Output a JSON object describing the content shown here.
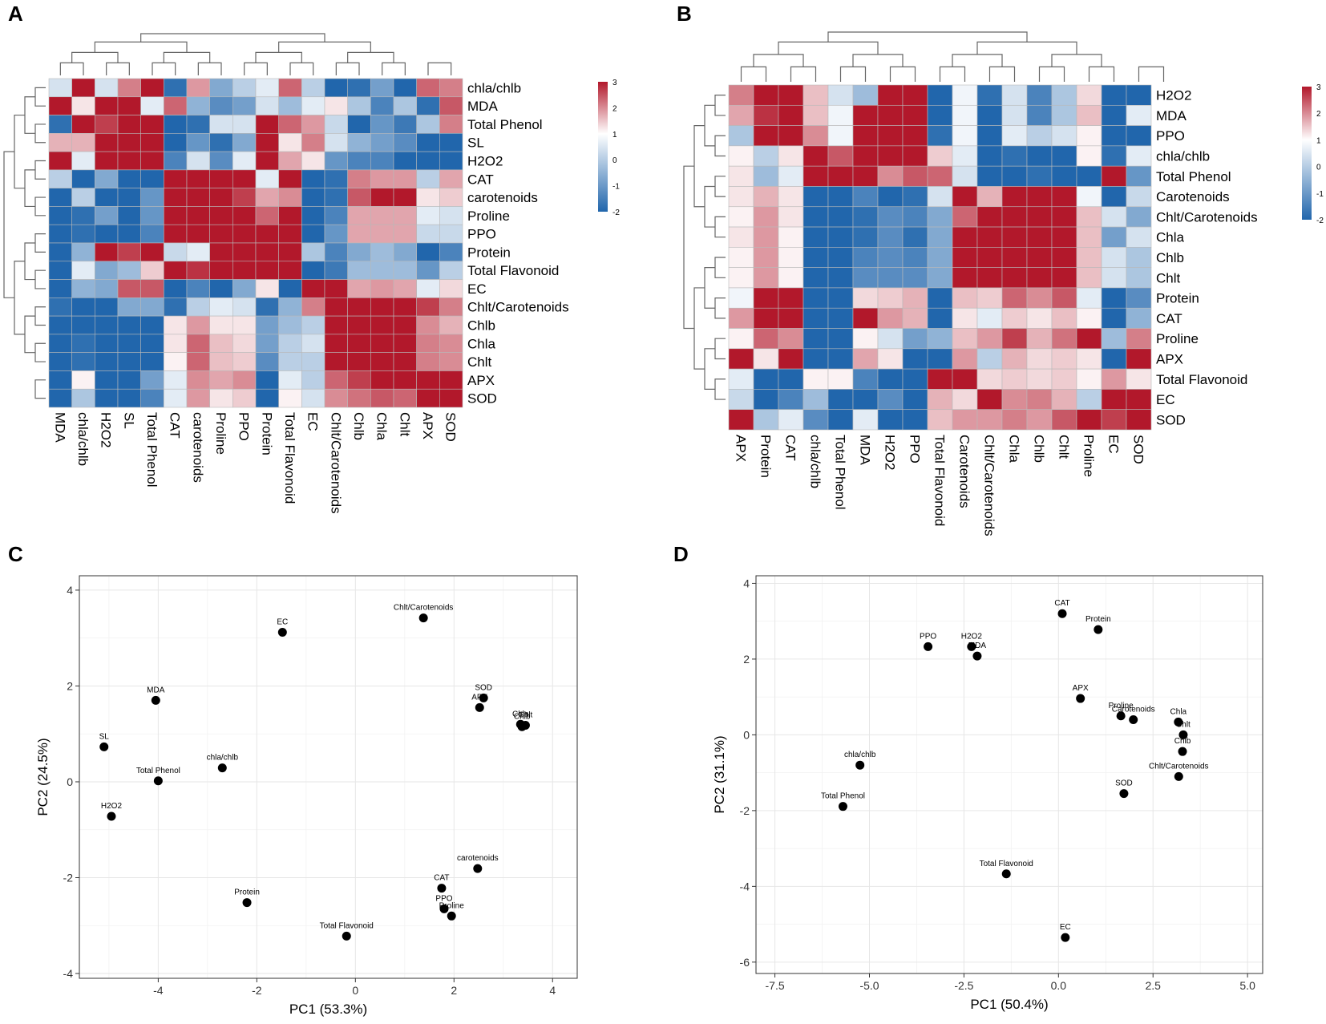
{
  "panels": [
    "A",
    "B",
    "C",
    "D"
  ],
  "colors": {
    "low": "#2166ac",
    "mid": "#ffffff",
    "high": "#b2182b",
    "point": "#000000"
  },
  "chart_data": [
    {
      "type": "heatmap",
      "panel": "A",
      "title": "",
      "rows": [
        "chla/chlb",
        "MDA",
        "Total Phenol",
        "SL",
        "H2O2",
        "CAT",
        "carotenoids",
        "Proline",
        "PPO",
        "Protein",
        "Total Flavonoid",
        "EC",
        "Chlt/Carotenoids",
        "Chlb",
        "Chla",
        "Chlt",
        "APX",
        "SOD"
      ],
      "columns": [
        "MDA",
        "chla/chlb",
        "H2O2",
        "SL",
        "Total Phenol",
        "CAT",
        "carotenoids",
        "Proline",
        "PPO",
        "Protein",
        "Total Flavonoid",
        "EC",
        "Chlt/Carotenoids",
        "Chlb",
        "Chla",
        "Chlt",
        "APX",
        "SOD"
      ],
      "values": [
        [
          -0.3,
          3,
          -0.3,
          1,
          3,
          -1.5,
          0.8,
          -0.9,
          -0.5,
          -0.2,
          1.2,
          -0.5,
          -2,
          -1.5,
          -1,
          -2,
          1.2,
          1
        ],
        [
          3,
          0.2,
          3,
          3,
          -0.2,
          1.2,
          -0.8,
          -1.2,
          -1,
          -0.3,
          -0.7,
          -0.2,
          0.2,
          -0.6,
          -1.3,
          -0.6,
          -1.5,
          1.3
        ],
        [
          -1.5,
          2.5,
          1.5,
          3,
          3,
          -1.8,
          -1.5,
          -0.3,
          -0.3,
          3,
          1.2,
          0.8,
          -0.4,
          -1.6,
          -1.1,
          -1.4,
          -0.6,
          1
        ],
        [
          0.6,
          0.6,
          3,
          3,
          3,
          -2,
          -1.1,
          -1.5,
          -0.9,
          3,
          0.2,
          1,
          -0.3,
          -0.8,
          -1,
          -1.2,
          -2,
          -2
        ],
        [
          2.5,
          -0.2,
          3,
          3,
          2.5,
          -1.3,
          -0.3,
          -1.2,
          -0.2,
          3,
          0.7,
          0.2,
          -1.1,
          -1.3,
          -1.3,
          -1.6,
          -2,
          -1.8
        ],
        [
          -0.5,
          -2,
          -0.9,
          -2,
          -2,
          3,
          3,
          3,
          3,
          -0.2,
          2,
          -2,
          -1.5,
          1,
          0.8,
          0.8,
          -0.5,
          0.7
        ],
        [
          -2,
          -0.5,
          -2,
          -2,
          -1.1,
          3,
          3,
          3,
          1.5,
          0.7,
          0.9,
          -2,
          -1.5,
          1.3,
          3,
          2,
          0.2,
          0.4
        ],
        [
          -2,
          -1.5,
          -1,
          -2,
          -1.1,
          3,
          3,
          3,
          3,
          1.2,
          2.5,
          -2,
          -1.3,
          0.7,
          0.7,
          0.7,
          -0.2,
          -0.3
        ],
        [
          -2,
          -1.5,
          -2,
          -2,
          -1.3,
          2.5,
          2,
          3,
          3,
          2,
          3,
          -2,
          -1.1,
          0.7,
          0.7,
          0.7,
          -0.4,
          -0.4
        ],
        [
          -2,
          -0.8,
          2.5,
          1.5,
          3,
          -0.4,
          -0.2,
          1.8,
          3,
          3,
          3,
          -0.6,
          -1.3,
          -0.9,
          -0.7,
          -0.9,
          -1.8,
          -1.3
        ],
        [
          -2,
          -0.2,
          -0.9,
          -0.7,
          0.4,
          2,
          1.6,
          3,
          3,
          3,
          3,
          -2,
          -1.4,
          -0.7,
          -0.7,
          -0.7,
          -1.1,
          -0.5
        ],
        [
          -2,
          -0.8,
          -0.9,
          1.3,
          1.3,
          -2,
          -1.3,
          -2,
          -0.9,
          0.2,
          -2,
          3,
          3,
          0.7,
          0.8,
          0.7,
          -0.2,
          0.3
        ],
        [
          -1.5,
          -2,
          -2,
          -0.9,
          -0.9,
          -1.5,
          -0.5,
          -0.2,
          -0.3,
          -1.5,
          -0.8,
          1,
          3,
          3,
          3,
          3,
          1.5,
          1
        ],
        [
          -2,
          -2,
          -2,
          -2,
          -2,
          0.2,
          0.8,
          0.2,
          0.2,
          -1,
          -0.7,
          -0.5,
          3,
          3,
          3,
          3,
          0.9,
          0.6
        ],
        [
          -2,
          -1.5,
          -2,
          -2,
          -2,
          0.2,
          1.2,
          0.5,
          0.3,
          -1,
          -0.5,
          -0.3,
          2.2,
          3,
          3,
          3,
          1,
          0.9
        ],
        [
          -2,
          -1.5,
          -2,
          -2,
          -2,
          0.1,
          1.2,
          0.5,
          0.4,
          -1.2,
          -0.5,
          -0.5,
          2.5,
          3,
          3,
          3,
          1,
          0.9
        ],
        [
          -2,
          0.1,
          -2,
          -2,
          -1,
          -0.2,
          0.9,
          0.7,
          0.9,
          -1.8,
          -0.2,
          -0.5,
          1.2,
          1.5,
          2,
          2,
          3,
          3
        ],
        [
          -2,
          -0.6,
          -2,
          -2,
          -1.3,
          -0.2,
          0.8,
          0.2,
          0.4,
          -2,
          0.1,
          -0.3,
          0.9,
          1.1,
          1.3,
          1.2,
          3,
          3
        ]
      ],
      "legend": {
        "min": -2,
        "max": 3,
        "ticks": [
          "3",
          "2",
          "1",
          "0",
          "-1",
          "-2"
        ]
      }
    },
    {
      "type": "heatmap",
      "panel": "B",
      "title": "",
      "rows": [
        "H2O2",
        "MDA",
        "PPO",
        "chla/chlb",
        "Total Phenol",
        "Carotenoids",
        "Chlt/Carotenoids",
        "Chla",
        "Chlb",
        "Chlt",
        "Protein",
        "CAT",
        "Proline",
        "APX",
        "Total Flavonoid",
        "EC",
        "SOD"
      ],
      "columns": [
        "APX",
        "Protein",
        "CAT",
        "chla/chlb",
        "Total Phenol",
        "MDA",
        "H2O2",
        "PPO",
        "Total Flavonoid",
        "Carotenoids",
        "Chlt/Carotenoids",
        "Chla",
        "Chlb",
        "Chlt",
        "Proline",
        "EC",
        "SOD"
      ],
      "values": [
        [
          1,
          3,
          3,
          0.5,
          -0.3,
          -0.7,
          3,
          3,
          -2,
          -0.1,
          -1.5,
          -0.3,
          -1.3,
          -0.6,
          0.3,
          -2,
          -2
        ],
        [
          0.7,
          1.6,
          3,
          0.5,
          -0.1,
          3,
          2.5,
          3,
          -2,
          -0.1,
          -2,
          -0.3,
          -1.3,
          -0.6,
          0.5,
          -2,
          -0.2
        ],
        [
          -0.6,
          2.5,
          3,
          0.9,
          -0.1,
          3,
          2.5,
          3,
          -1.5,
          -0.1,
          -1.6,
          -0.2,
          -0.5,
          -0.3,
          0.1,
          -2,
          -2
        ],
        [
          0.1,
          -0.5,
          0.2,
          3,
          1.3,
          3,
          2.5,
          3,
          0.4,
          -0.2,
          -2,
          -1.5,
          -2,
          -2,
          0.1,
          -1.5,
          -0.2
        ],
        [
          0.2,
          -0.7,
          -0.2,
          2.5,
          3,
          3,
          0.9,
          1.3,
          1.2,
          -0.3,
          -2,
          -2,
          -1.5,
          -2,
          -2,
          3,
          -1.1
        ],
        [
          0.2,
          0.6,
          0.2,
          -2,
          -2,
          -1.3,
          -1.6,
          -1.5,
          -0.3,
          3,
          0.6,
          3,
          3,
          3,
          -0.1,
          -2,
          -0.4
        ],
        [
          0.1,
          0.8,
          0.2,
          -2,
          -2,
          -1.5,
          -1.2,
          -1.3,
          -0.9,
          1.2,
          3,
          3,
          3,
          3,
          0.5,
          -0.3,
          -0.9
        ],
        [
          0.2,
          0.8,
          0.1,
          -2,
          -2,
          -1.5,
          -1.2,
          -1.5,
          -0.9,
          2.5,
          3,
          3,
          3,
          3,
          0.5,
          -1,
          -0.3
        ],
        [
          0.1,
          0.8,
          0.1,
          -2,
          -2,
          -1.3,
          -1.2,
          -1.3,
          -0.9,
          2.5,
          3,
          3,
          3,
          3,
          0.5,
          -0.3,
          -0.6
        ],
        [
          0.1,
          0.8,
          0.1,
          -2,
          -2,
          -1.2,
          -1.2,
          -1.2,
          -0.9,
          2.5,
          3,
          3,
          3,
          3,
          0.5,
          -0.3,
          -0.6
        ],
        [
          -0.1,
          3,
          3,
          -2,
          -2,
          0.3,
          0.4,
          0.6,
          -2,
          0.5,
          0.4,
          1.2,
          0.9,
          1.3,
          -0.2,
          -2,
          -1.2
        ],
        [
          0.8,
          3,
          3,
          -1.7,
          -2,
          2,
          0.8,
          0.6,
          -2,
          0.2,
          -0.2,
          0.4,
          0.2,
          0.5,
          0.1,
          -2,
          -0.8
        ],
        [
          0.1,
          1.2,
          0.9,
          -2,
          -2,
          0.1,
          -0.3,
          -1,
          -0.8,
          0.5,
          0.8,
          1.5,
          0.6,
          1.1,
          3,
          -0.7,
          1
        ],
        [
          3,
          0.2,
          1.9,
          -2,
          -2,
          0.7,
          0.2,
          -2,
          -2,
          0.8,
          -0.5,
          0.6,
          0.3,
          0.4,
          0.2,
          -2,
          3
        ],
        [
          -0.2,
          -2,
          -2,
          0.1,
          0.1,
          -1.3,
          -1.8,
          -2,
          3,
          2.5,
          0.3,
          0.4,
          0.3,
          0.4,
          0.1,
          0.8,
          0.2
        ],
        [
          -0.4,
          -2,
          -1.3,
          -0.7,
          -2,
          -2,
          -1.2,
          -2,
          0.6,
          0.3,
          3,
          0.9,
          1,
          0.6,
          -0.5,
          3,
          3
        ],
        [
          3,
          -0.6,
          -0.2,
          -1.2,
          -2,
          -0.2,
          -2,
          -2,
          0.5,
          0.8,
          0.8,
          1,
          0.8,
          1.3,
          2,
          1.5,
          3
        ]
      ],
      "legend": {
        "min": -2,
        "max": 3,
        "ticks": [
          "3",
          "2",
          "1",
          "0",
          "-1",
          "-2"
        ]
      }
    },
    {
      "type": "scatter",
      "panel": "C",
      "xlabel": "PC1 (53.3%)",
      "ylabel": "PC2 (24.5%)",
      "xlim": [
        -5.6,
        4.5
      ],
      "ylim": [
        -4.1,
        4.3
      ],
      "xticks": [
        "-4",
        "-2",
        "0",
        "2",
        "4"
      ],
      "yticks": [
        "4",
        "2",
        "0",
        "-2",
        "-4"
      ],
      "points": [
        {
          "label": "Chlt/Carotenoids",
          "x": 1.38,
          "y": 3.42
        },
        {
          "label": "EC",
          "x": -1.48,
          "y": 3.12
        },
        {
          "label": "SOD",
          "x": 2.6,
          "y": 1.75
        },
        {
          "label": "APX",
          "x": 2.52,
          "y": 1.55
        },
        {
          "label": "Chla",
          "x": 3.35,
          "y": 1.2
        },
        {
          "label": "Chlt",
          "x": 3.45,
          "y": 1.18
        },
        {
          "label": "Chlb",
          "x": 3.38,
          "y": 1.15
        },
        {
          "label": "MDA",
          "x": -4.05,
          "y": 1.7
        },
        {
          "label": "SL",
          "x": -5.1,
          "y": 0.73
        },
        {
          "label": "chla/chlb",
          "x": -2.7,
          "y": 0.29
        },
        {
          "label": "Total Phenol",
          "x": -4.0,
          "y": 0.02
        },
        {
          "label": "H2O2",
          "x": -4.95,
          "y": -0.72
        },
        {
          "label": "carotenoids",
          "x": 2.48,
          "y": -1.81
        },
        {
          "label": "CAT",
          "x": 1.75,
          "y": -2.22
        },
        {
          "label": "Protein",
          "x": -2.2,
          "y": -2.52
        },
        {
          "label": "PPO",
          "x": 1.8,
          "y": -2.65
        },
        {
          "label": "Proline",
          "x": 1.95,
          "y": -2.8
        },
        {
          "label": "Total Flavonoid",
          "x": -0.18,
          "y": -3.22
        }
      ]
    },
    {
      "type": "scatter",
      "panel": "D",
      "xlabel": "PC1 (50.4%)",
      "ylabel": "PC2 (31.1%)",
      "xlim": [
        -8.0,
        5.4
      ],
      "ylim": [
        -6.3,
        4.2
      ],
      "xticks": [
        "-7.5",
        "-5.0",
        "-2.5",
        "0.0",
        "2.5",
        "5.0"
      ],
      "yticks": [
        "4",
        "2",
        "0",
        "-2",
        "-4",
        "-6"
      ],
      "points": [
        {
          "label": "CAT",
          "x": 0.1,
          "y": 3.2
        },
        {
          "label": "Protein",
          "x": 1.05,
          "y": 2.78
        },
        {
          "label": "PPO",
          "x": -3.45,
          "y": 2.33
        },
        {
          "label": "H2O2",
          "x": -2.3,
          "y": 2.33
        },
        {
          "label": "MDA",
          "x": -2.15,
          "y": 2.08
        },
        {
          "label": "APX",
          "x": 0.58,
          "y": 0.96
        },
        {
          "label": "Proline",
          "x": 1.65,
          "y": 0.5
        },
        {
          "label": "Carotenoids",
          "x": 1.98,
          "y": 0.4
        },
        {
          "label": "Chla",
          "x": 3.17,
          "y": 0.34
        },
        {
          "label": "Chlt",
          "x": 3.3,
          "y": 0.0
        },
        {
          "label": "Chlb",
          "x": 3.28,
          "y": -0.44
        },
        {
          "label": "Chlt/Carotenoids",
          "x": 3.18,
          "y": -1.1
        },
        {
          "label": "SOD",
          "x": 1.73,
          "y": -1.55
        },
        {
          "label": "chla/chlb",
          "x": -5.25,
          "y": -0.8
        },
        {
          "label": "Total Phenol",
          "x": -5.7,
          "y": -1.89
        },
        {
          "label": "Total Flavonoid",
          "x": -1.38,
          "y": -3.67
        },
        {
          "label": "EC",
          "x": 0.18,
          "y": -5.35
        }
      ]
    }
  ]
}
